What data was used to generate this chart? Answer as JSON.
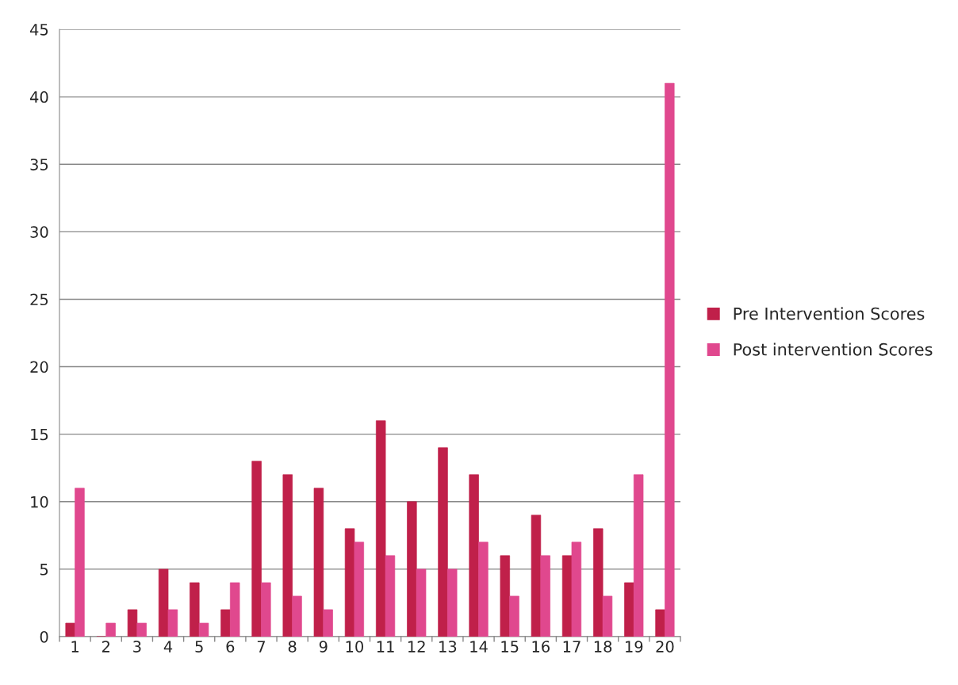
{
  "chart_data": {
    "type": "bar",
    "categories": [
      "1",
      "2",
      "3",
      "4",
      "5",
      "6",
      "7",
      "8",
      "9",
      "10",
      "11",
      "12",
      "13",
      "14",
      "15",
      "16",
      "17",
      "18",
      "19",
      "20"
    ],
    "series": [
      {
        "name": "Pre Intervention Scores",
        "color": "#c0204a",
        "values": [
          1,
          0,
          2,
          5,
          4,
          2,
          13,
          12,
          11,
          8,
          16,
          10,
          14,
          12,
          6,
          9,
          6,
          8,
          4,
          2
        ]
      },
      {
        "name": "Post intervention Scores",
        "color": "#e0488e",
        "values": [
          11,
          1,
          1,
          2,
          1,
          4,
          4,
          3,
          2,
          7,
          6,
          5,
          5,
          7,
          3,
          6,
          7,
          3,
          12,
          41
        ]
      }
    ],
    "ylim": [
      0,
      45
    ],
    "yticks": [
      0,
      5,
      10,
      15,
      20,
      25,
      30,
      35,
      40,
      45
    ],
    "grid": "y",
    "legend": "right"
  }
}
